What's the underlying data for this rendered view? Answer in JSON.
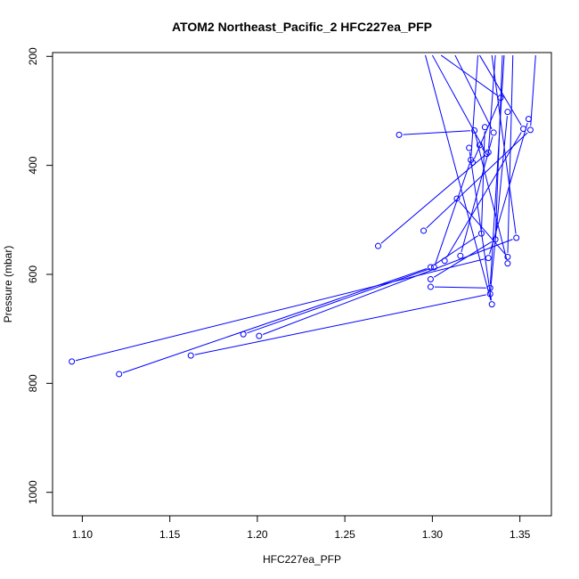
{
  "chart_data": {
    "type": "line",
    "title": "ATOM2 Northeast_Pacific_2 HFC227ea_PFP",
    "xlabel": "HFC227ea_PFP",
    "ylabel": "Pressure (mbar)",
    "xlim": [
      1.083,
      1.368
    ],
    "ylim": [
      1043,
      193
    ],
    "y_reversed": true,
    "grid": false,
    "line_color": "#0000ff",
    "marker": "open-circle",
    "x_ticks": [
      1.1,
      1.15,
      1.2,
      1.25,
      1.3,
      1.35
    ],
    "x_tick_labels": [
      "1.10",
      "1.15",
      "1.20",
      "1.25",
      "1.30",
      "1.35"
    ],
    "y_ticks": [
      200,
      400,
      600,
      800,
      1000
    ],
    "y_tick_labels": [
      "200",
      "400",
      "600",
      "800",
      "1000"
    ],
    "segments": [
      [
        [
          1.121,
          783
        ],
        [
          1.299,
          587
        ],
        [
          1.328,
          525
        ],
        [
          1.33,
          330
        ]
      ],
      [
        [
          1.094,
          760
        ],
        [
          1.332,
          570
        ],
        [
          1.355,
          315
        ]
      ],
      [
        [
          1.162,
          749
        ],
        [
          1.333,
          636
        ],
        [
          1.343,
          302
        ]
      ],
      [
        [
          1.192,
          710
        ],
        [
          1.301,
          587
        ],
        [
          1.322,
          390
        ],
        [
          1.326,
          198
        ]
      ],
      [
        [
          1.201,
          713
        ],
        [
          1.348,
          533
        ],
        [
          1.334,
          198
        ]
      ],
      [
        [
          1.269,
          548
        ],
        [
          1.332,
          376
        ],
        [
          1.336,
          198
        ]
      ],
      [
        [
          1.281,
          344
        ],
        [
          1.324,
          336
        ],
        [
          1.343,
          580
        ]
      ],
      [
        [
          1.295,
          520
        ],
        [
          1.356,
          335
        ],
        [
          1.359,
          198
        ]
      ],
      [
        [
          1.299,
          609
        ],
        [
          1.336,
          536
        ],
        [
          1.34,
          198
        ]
      ],
      [
        [
          1.299,
          623
        ],
        [
          1.333,
          625
        ],
        [
          1.341,
          198
        ]
      ],
      [
        [
          1.307,
          575
        ],
        [
          1.352,
          333
        ],
        [
          1.327,
          198
        ]
      ],
      [
        [
          1.314,
          461
        ],
        [
          1.343,
          568
        ],
        [
          1.346,
          198
        ]
      ],
      [
        [
          1.316,
          566
        ],
        [
          1.335,
          340
        ],
        [
          1.313,
          198
        ]
      ],
      [
        [
          1.321,
          368
        ],
        [
          1.334,
          655
        ],
        [
          1.296,
          198
        ]
      ],
      [
        [
          1.323,
          395
        ],
        [
          1.339,
          276
        ],
        [
          1.305,
          198
        ]
      ],
      [
        [
          1.327,
          363
        ],
        [
          1.331,
          379
        ],
        [
          1.3,
          198
        ]
      ]
    ]
  }
}
